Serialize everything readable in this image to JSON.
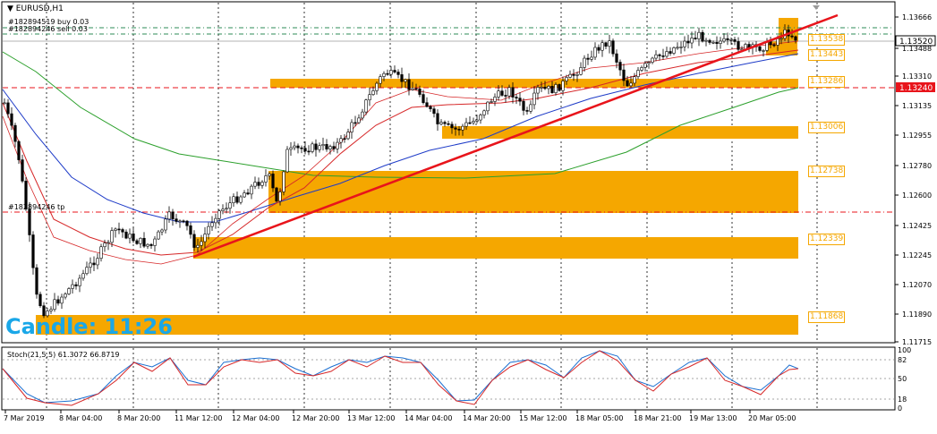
{
  "window_title": "EURUSD,H1",
  "orders": [
    {
      "id": "buy",
      "text": "#182894519 buy 0.03"
    },
    {
      "id": "sell",
      "text": "#182894246 sell 0.03"
    },
    {
      "id": "tp",
      "text": "#182894246 tp"
    }
  ],
  "candle_timer": "Candle:  11:26",
  "stoch_label": "Stoch(21,5,5) 61.3072 66.8719",
  "price_axis": [
    "1.13666",
    "1.13488",
    "1.13310",
    "1.13135",
    "1.12955",
    "1.12780",
    "1.12600",
    "1.12425",
    "1.12245",
    "1.12070",
    "1.11890",
    "1.11715"
  ],
  "current_price": "1.13520",
  "red_line_price": "1.13240",
  "stoch_levels": [
    "100",
    "82",
    "50",
    "18",
    "0"
  ],
  "time_axis": [
    "7 Mar 2019",
    "8 Mar 04:00",
    "8 Mar 20:00",
    "11 Mar 12:00",
    "12 Mar 04:00",
    "12 Mar 20:00",
    "13 Mar 12:00",
    "14 Mar 04:00",
    "14 Mar 20:00",
    "15 Mar 12:00",
    "18 Mar 05:00",
    "18 Mar 21:00",
    "19 Mar 13:00",
    "20 Mar 05:00"
  ],
  "zones": [
    "1.13538",
    "1.13443",
    "1.13286",
    "1.13006",
    "1.12738",
    "1.12339",
    "1.11868"
  ],
  "colors": {
    "zone": "#f5a700",
    "trendline": "#e8141b",
    "ma_fast": "#d62728",
    "ma_mid": "#1f3cc8",
    "ma_slow": "#2ca02c",
    "candle": "#000000",
    "timer": "#1aa7e8",
    "stoch_main": "#1b6fd1",
    "stoch_signal": "#d62728"
  }
}
